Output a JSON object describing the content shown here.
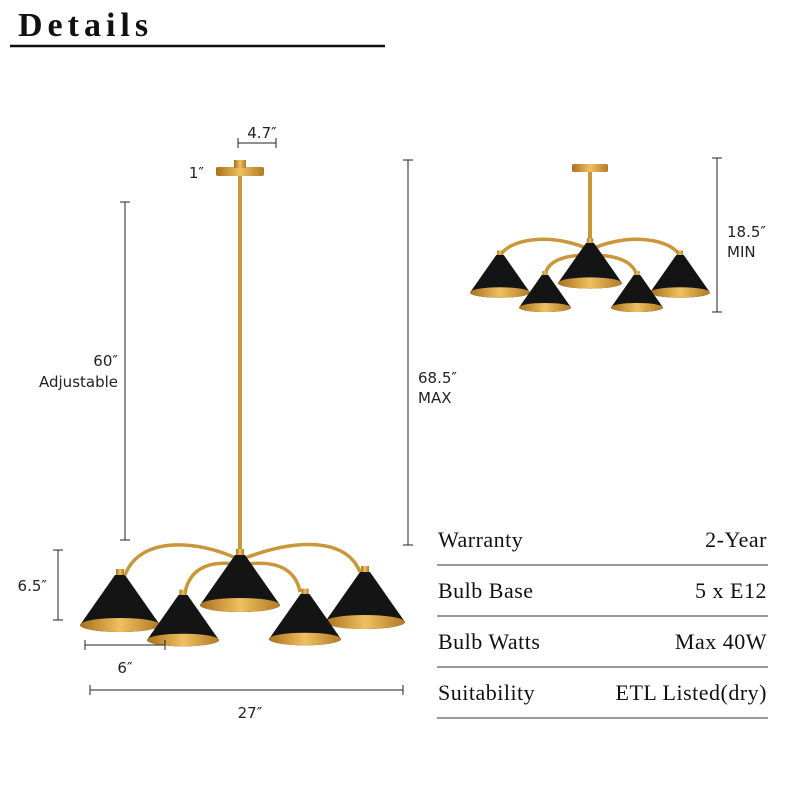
{
  "title": "Details",
  "dimensions": {
    "canopy_width": "4.7″",
    "canopy_height": "1″",
    "rod_length": "60″",
    "rod_note": "Adjustable",
    "max_height": "68.5″",
    "max_note": "MAX",
    "min_height": "18.5″",
    "min_note": "MIN",
    "shade_height": "6.5″",
    "shade_width": "6″",
    "total_width": "27″"
  },
  "specs": {
    "rows": [
      [
        "Warranty",
        "2-Year"
      ],
      [
        "Bulb Base",
        "5 x E12"
      ],
      [
        "Bulb Watts",
        "Max 40W"
      ],
      [
        "Suitability",
        "ETL Listed(dry)"
      ]
    ]
  }
}
